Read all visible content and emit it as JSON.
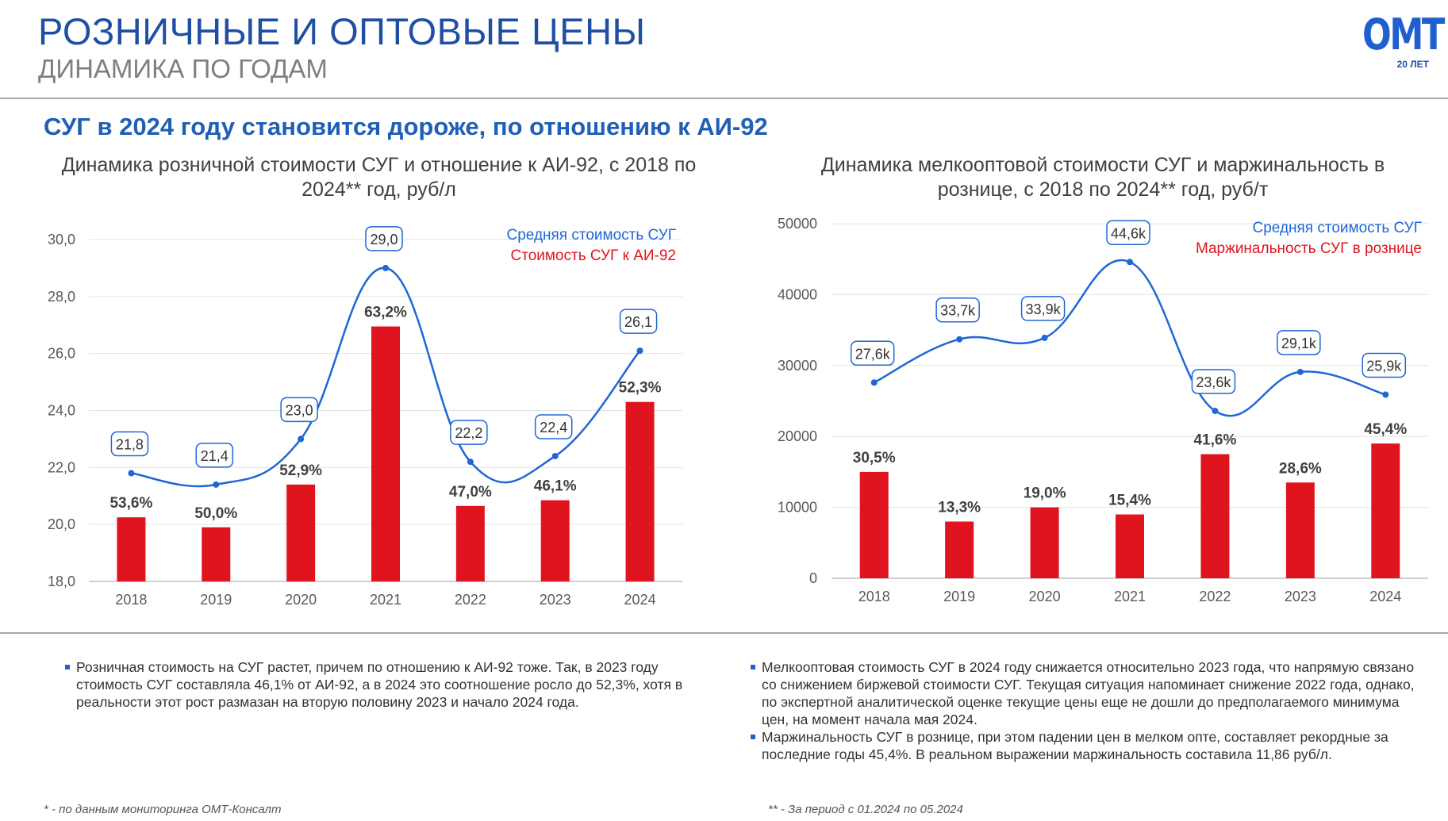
{
  "header": {
    "title": "РОЗНИЧНЫЕ И ОПТОВЫЕ ЦЕНЫ",
    "subtitle": "ДИНАМИКА ПО ГОДАМ",
    "logo_text": "ОМТ",
    "logo_sub": "20 ЛЕТ"
  },
  "headline": "СУГ в 2024 году становится дороже, по отношению к АИ-92",
  "colors": {
    "line": "#1f66d6",
    "bar": "#e0141e",
    "title": "#1f4fa3"
  },
  "chart_data": [
    {
      "type": "bar",
      "title": "Динамика розничной стоимости СУГ и отношение к АИ-92, с 2018 по 2024** год, руб/л",
      "categories": [
        "2018",
        "2019",
        "2020",
        "2021",
        "2022",
        "2023",
        "2024"
      ],
      "ylim": [
        18,
        30
      ],
      "yticks": [
        "18,0",
        "20,0",
        "22,0",
        "24,0",
        "26,0",
        "28,0",
        "30,0"
      ],
      "legend_position": "top-right",
      "grid": true,
      "series": [
        {
          "name": "Средняя стоимость СУГ",
          "type": "line",
          "values": [
            21.8,
            21.4,
            23.0,
            29.0,
            22.2,
            22.4,
            26.1
          ],
          "labels": [
            "21,8",
            "21,4",
            "23,0",
            "29,0",
            "22,2",
            "22,4",
            "26,1"
          ]
        },
        {
          "name": "Стоимость СУГ к АИ-92",
          "type": "bar",
          "values": [
            20.25,
            19.9,
            21.4,
            26.95,
            20.65,
            20.85,
            24.3
          ],
          "labels": [
            "53,6%",
            "50,0%",
            "52,9%",
            "63,2%",
            "47,0%",
            "46,1%",
            "52,3%"
          ]
        }
      ]
    },
    {
      "type": "bar",
      "title": "Динамика мелкооптовой стоимости СУГ и маржинальность в рознице, с 2018 по 2024** год, руб/т",
      "categories": [
        "2018",
        "2019",
        "2020",
        "2021",
        "2022",
        "2023",
        "2024"
      ],
      "ylim": [
        0,
        50000
      ],
      "yticks": [
        "0",
        "10000",
        "20000",
        "30000",
        "40000",
        "50000"
      ],
      "legend_position": "top-right",
      "grid": true,
      "series": [
        {
          "name": "Средняя стоимость СУГ",
          "type": "line",
          "values": [
            27600,
            33700,
            33900,
            44600,
            23600,
            29100,
            25900
          ],
          "labels": [
            "27,6k",
            "33,7k",
            "33,9k",
            "44,6k",
            "23,6k",
            "29,1k",
            "25,9k"
          ]
        },
        {
          "name": "Маржинальность СУГ в рознице",
          "type": "bar",
          "values": [
            15000,
            8000,
            10000,
            9000,
            17500,
            13500,
            19000
          ],
          "labels": [
            "30,5%",
            "13,3%",
            "19,0%",
            "15,4%",
            "41,6%",
            "28,6%",
            "45,4%"
          ]
        }
      ]
    }
  ],
  "notes": {
    "left": [
      "Розничная стоимость на СУГ растет, причем по отношению к АИ-92 тоже. Так, в 2023 году стоимость СУГ составляла 46,1% от АИ-92, а в 2024 это соотношение росло до 52,3%, хотя в реальности этот рост размазан на вторую половину 2023 и начало 2024 года."
    ],
    "right": [
      "Мелкооптовая стоимость СУГ в 2024 году снижается относительно 2023 года, что напрямую связано со снижением биржевой стоимости СУГ. Текущая ситуация напоминает снижение 2022 года, однако, по экспертной аналитической оценке текущие цены еще не дошли до предполагаемого минимума цен, на момент начала мая 2024.",
      "Маржинальность СУГ в рознице, при этом падении цен в мелком опте, составляет рекордные за последние годы 45,4%. В реальном выражении маржинальность составила 11,86 руб/л."
    ]
  },
  "footnotes": {
    "left": "* - по данным мониторинга ОМТ-Консалт",
    "right": "** - За период с 01.2024 по 05.2024"
  }
}
